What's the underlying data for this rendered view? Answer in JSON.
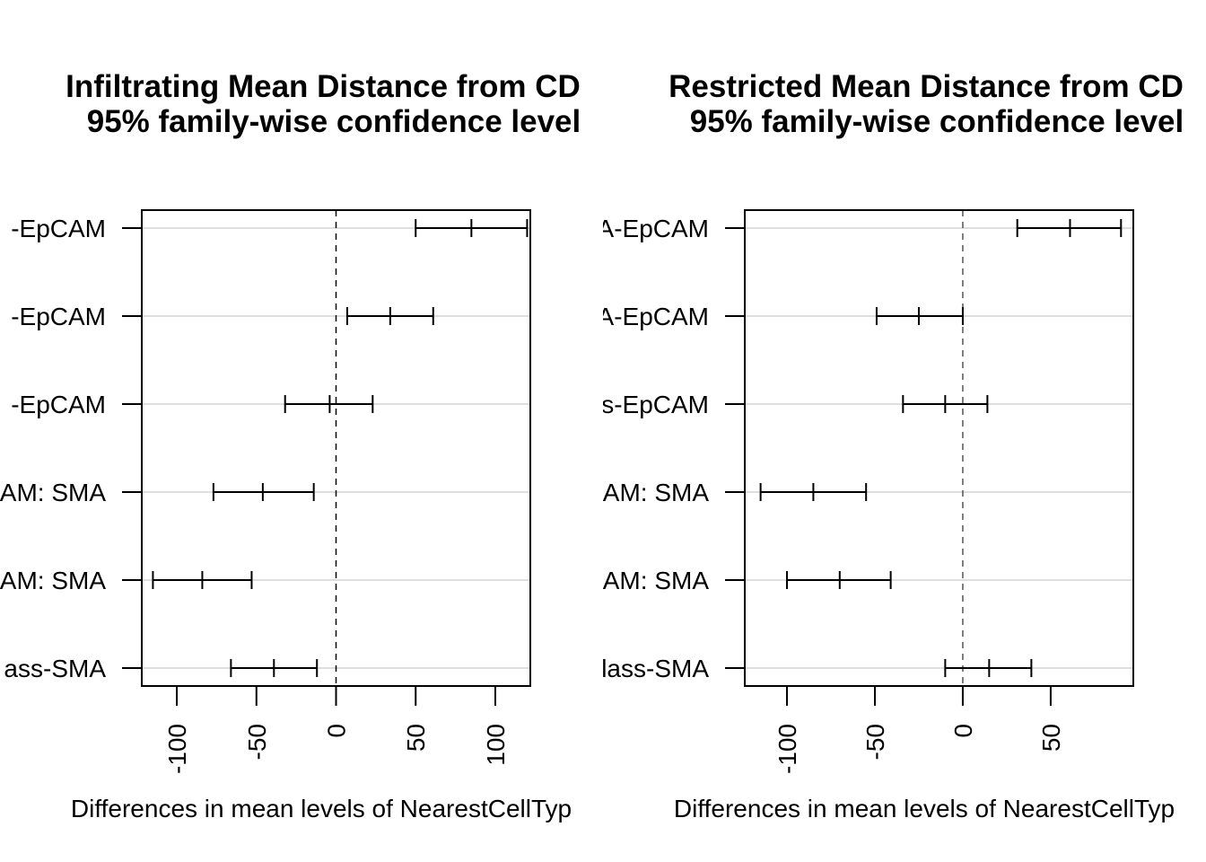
{
  "chart_data": [
    {
      "type": "errorbar",
      "title": "Infiltrating Mean Distance from CD",
      "subtitle": "95% family-wise confidence level",
      "xlabel": "Differences in mean levels of NearestCellTyp",
      "xticks": [
        "-100",
        "-50",
        "0",
        "50",
        "100"
      ],
      "xlim": [
        -122,
        122
      ],
      "reference_line": 0,
      "grid": true,
      "categories": [
        "-EpCAM",
        "-EpCAM",
        "-EpCAM",
        "AM: SMA",
        "AM: SMA",
        "ass-SMA"
      ],
      "intervals": [
        {
          "lwr": 50,
          "estimate": 85,
          "upr": 120
        },
        {
          "lwr": 7,
          "estimate": 34,
          "upr": 61
        },
        {
          "lwr": -32,
          "estimate": -4,
          "upr": 23
        },
        {
          "lwr": -77,
          "estimate": -46,
          "upr": -14
        },
        {
          "lwr": -115,
          "estimate": -84,
          "upr": -53
        },
        {
          "lwr": -66,
          "estimate": -39,
          "upr": -12
        }
      ]
    },
    {
      "type": "errorbar",
      "title": "Restricted Mean Distance from CD",
      "subtitle": "95% family-wise confidence level",
      "xlabel": "Differences in mean levels of NearestCellTyp",
      "xticks": [
        "-100",
        "-50",
        "0",
        "50"
      ],
      "xlim": [
        -124,
        97
      ],
      "reference_line": 0,
      "grid": true,
      "categories": [
        "EpCAM: SMA-EpCAM",
        "SMA-EpCAM",
        "Unclass-EpCAM",
        "SMA-EpCAM: SMA",
        "Unclass-EpCAM: SMA",
        "Unclass-SMA"
      ],
      "intervals": [
        {
          "lwr": 31,
          "estimate": 61,
          "upr": 90
        },
        {
          "lwr": -49,
          "estimate": -25,
          "upr": 0
        },
        {
          "lwr": -34,
          "estimate": -10,
          "upr": 14
        },
        {
          "lwr": -115,
          "estimate": -85,
          "upr": -55
        },
        {
          "lwr": -100,
          "estimate": -70,
          "upr": -41
        },
        {
          "lwr": -10,
          "estimate": 15,
          "upr": 39
        }
      ]
    }
  ]
}
